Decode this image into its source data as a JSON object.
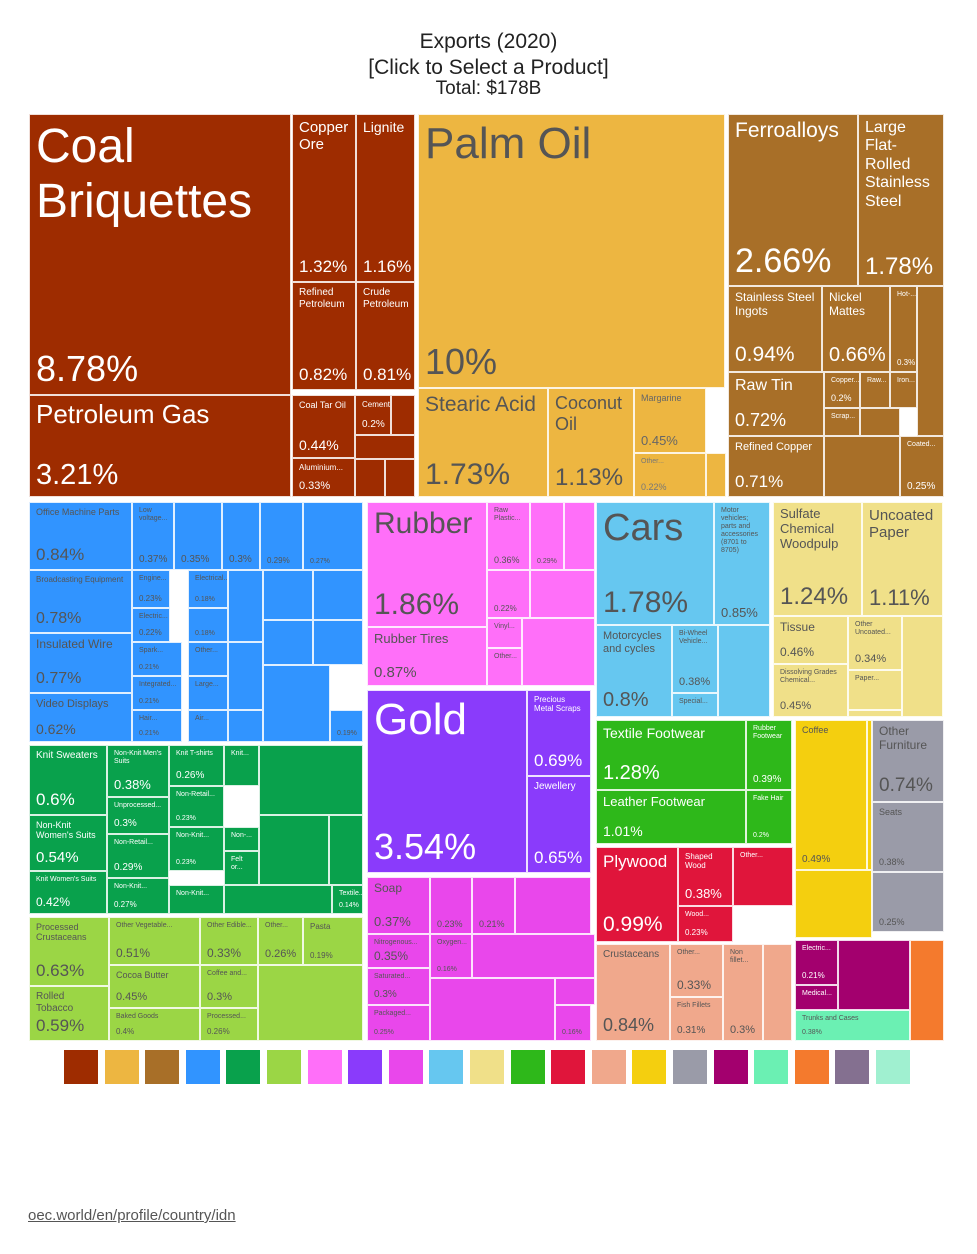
{
  "title": "Exports (2020)",
  "subtitle": "[Click to Select a Product]",
  "total": "Total: $178B",
  "source": "oec.world/en/profile/country/idn",
  "legend_colors": [
    "#9e2c00",
    "#edb641",
    "#a86f28",
    "#3194ff",
    "#09a14c",
    "#9bd645",
    "#ff6ff9",
    "#8a3bfb",
    "#e947eb",
    "#66c7f0",
    "#f0e089",
    "#2eb81a",
    "#e0153b",
    "#f0a88c",
    "#f4cf0f",
    "#9a9ba8",
    "#a3006e",
    "#6bf0b3",
    "#f47a2d",
    "#847090",
    "#a0f0d0"
  ],
  "chart_data": {
    "type": "treemap",
    "title": "Exports (2020)",
    "total": "$178B",
    "items": [
      {
        "name": "Coal Briquettes",
        "pct": "8.78%",
        "value": 8.78,
        "color": "#9e2c00"
      },
      {
        "name": "Copper Ore",
        "pct": "1.32%",
        "value": 1.32,
        "color": "#9e2c00"
      },
      {
        "name": "Lignite",
        "pct": "1.16%",
        "value": 1.16,
        "color": "#9e2c00"
      },
      {
        "name": "Refined Petroleum",
        "pct": "0.82%",
        "value": 0.82,
        "color": "#9e2c00"
      },
      {
        "name": "Crude Petroleum",
        "pct": "0.81%",
        "value": 0.81,
        "color": "#9e2c00"
      },
      {
        "name": "Petroleum Gas",
        "pct": "3.21%",
        "value": 3.21,
        "color": "#9e2c00"
      },
      {
        "name": "Coal Tar Oil",
        "pct": "0.44%",
        "value": 0.44,
        "color": "#9e2c00"
      },
      {
        "name": "Cement",
        "pct": "0.2%",
        "value": 0.2,
        "color": "#9e2c00"
      },
      {
        "name": "Aluminium...",
        "pct": "0.33%",
        "value": 0.33,
        "color": "#9e2c00"
      },
      {
        "name": "Palm Oil",
        "pct": "10%",
        "value": 10,
        "color": "#edb641"
      },
      {
        "name": "Stearic Acid",
        "pct": "1.73%",
        "value": 1.73,
        "color": "#edb641"
      },
      {
        "name": "Coconut Oil",
        "pct": "1.13%",
        "value": 1.13,
        "color": "#edb641"
      },
      {
        "name": "Margarine",
        "pct": "0.45%",
        "value": 0.45,
        "color": "#edb641"
      },
      {
        "name": "Other...",
        "pct": "0.22%",
        "value": 0.22,
        "color": "#edb641"
      },
      {
        "name": "Ferroalloys",
        "pct": "2.66%",
        "value": 2.66,
        "color": "#a86f28"
      },
      {
        "name": "Large Flat-Rolled Stainless Steel",
        "pct": "1.78%",
        "value": 1.78,
        "color": "#a86f28"
      },
      {
        "name": "Stainless Steel Ingots",
        "pct": "0.94%",
        "value": 0.94,
        "color": "#a86f28"
      },
      {
        "name": "Nickel Mattes",
        "pct": "0.66%",
        "value": 0.66,
        "color": "#a86f28"
      },
      {
        "name": "Hot-...",
        "pct": "0.3%",
        "value": 0.3,
        "color": "#a86f28"
      },
      {
        "name": "Raw Tin",
        "pct": "0.72%",
        "value": 0.72,
        "color": "#a86f28"
      },
      {
        "name": "Copper...",
        "pct": "0.2%",
        "value": 0.2,
        "color": "#a86f28"
      },
      {
        "name": "Raw...",
        "pct": "",
        "value": null,
        "color": "#a86f28"
      },
      {
        "name": "Iron...",
        "pct": "",
        "value": null,
        "color": "#a86f28"
      },
      {
        "name": "Scrap...",
        "pct": "",
        "value": null,
        "color": "#a86f28"
      },
      {
        "name": "Refined Copper",
        "pct": "0.71%",
        "value": 0.71,
        "color": "#a86f28"
      },
      {
        "name": "Coated...",
        "pct": "0.25%",
        "value": 0.25,
        "color": "#a86f28"
      },
      {
        "name": "Office Machine Parts",
        "pct": "0.84%",
        "value": 0.84,
        "color": "#3194ff"
      },
      {
        "name": "Low voltage...",
        "pct": "0.37%",
        "value": 0.37,
        "color": "#3194ff"
      },
      {
        "name": "",
        "pct": "0.35%",
        "value": 0.35,
        "color": "#3194ff"
      },
      {
        "name": "",
        "pct": "0.3%",
        "value": 0.3,
        "color": "#3194ff"
      },
      {
        "name": "",
        "pct": "0.29%",
        "value": 0.29,
        "color": "#3194ff"
      },
      {
        "name": "",
        "pct": "0.27%",
        "value": 0.27,
        "color": "#3194ff"
      },
      {
        "name": "Broadcasting Equipment",
        "pct": "0.78%",
        "value": 0.78,
        "color": "#3194ff"
      },
      {
        "name": "Engine...",
        "pct": "0.23%",
        "value": 0.23,
        "color": "#3194ff"
      },
      {
        "name": "Electrical...",
        "pct": "0.18%",
        "value": 0.18,
        "color": "#3194ff"
      },
      {
        "name": "Electric...",
        "pct": "0.22%",
        "value": 0.22,
        "color": "#3194ff"
      },
      {
        "name": "",
        "pct": "0.18%",
        "value": 0.18,
        "color": "#3194ff"
      },
      {
        "name": "Insulated Wire",
        "pct": "0.77%",
        "value": 0.77,
        "color": "#3194ff"
      },
      {
        "name": "Spark...",
        "pct": "0.21%",
        "value": 0.21,
        "color": "#3194ff"
      },
      {
        "name": "Other...",
        "pct": "",
        "value": null,
        "color": "#3194ff"
      },
      {
        "name": "Integrated...",
        "pct": "0.21%",
        "value": 0.21,
        "color": "#3194ff"
      },
      {
        "name": "Large...",
        "pct": "",
        "value": null,
        "color": "#3194ff"
      },
      {
        "name": "Video Displays",
        "pct": "0.62%",
        "value": 0.62,
        "color": "#3194ff"
      },
      {
        "name": "Hair...",
        "pct": "0.21%",
        "value": 0.21,
        "color": "#3194ff"
      },
      {
        "name": "Air...",
        "pct": "",
        "value": null,
        "color": "#3194ff"
      },
      {
        "name": "",
        "pct": "0.19%",
        "value": 0.19,
        "color": "#3194ff"
      },
      {
        "name": "Knit Sweaters",
        "pct": "0.6%",
        "value": 0.6,
        "color": "#09a14c"
      },
      {
        "name": "Non-Knit Men's Suits",
        "pct": "0.38%",
        "value": 0.38,
        "color": "#09a14c"
      },
      {
        "name": "Knit T-shirts",
        "pct": "0.26%",
        "value": 0.26,
        "color": "#09a14c"
      },
      {
        "name": "Knit...",
        "pct": "",
        "value": null,
        "color": "#09a14c"
      },
      {
        "name": "Unprocessed...",
        "pct": "0.3%",
        "value": 0.3,
        "color": "#09a14c"
      },
      {
        "name": "Non-Retail...",
        "pct": "0.23%",
        "value": 0.23,
        "color": "#09a14c"
      },
      {
        "name": "Non-Knit Women's Suits",
        "pct": "0.54%",
        "value": 0.54,
        "color": "#09a14c"
      },
      {
        "name": "Non-Retail...",
        "pct": "0.29%",
        "value": 0.29,
        "color": "#09a14c"
      },
      {
        "name": "Non-Knit...",
        "pct": "0.23%",
        "value": 0.23,
        "color": "#09a14c"
      },
      {
        "name": "Non-...",
        "pct": "",
        "value": null,
        "color": "#09a14c"
      },
      {
        "name": "Felt or...",
        "pct": "",
        "value": null,
        "color": "#09a14c"
      },
      {
        "name": "Knit Women's Suits",
        "pct": "0.42%",
        "value": 0.42,
        "color": "#09a14c"
      },
      {
        "name": "Non-Knit...",
        "pct": "0.27%",
        "value": 0.27,
        "color": "#09a14c"
      },
      {
        "name": "Non-Knit...",
        "pct": "",
        "value": null,
        "color": "#09a14c"
      },
      {
        "name": "Textile...",
        "pct": "0.14%",
        "value": 0.14,
        "color": "#09a14c"
      },
      {
        "name": "Processed Crustaceans",
        "pct": "0.63%",
        "value": 0.63,
        "color": "#9bd645"
      },
      {
        "name": "Other Vegetable...",
        "pct": "0.51%",
        "value": 0.51,
        "color": "#9bd645"
      },
      {
        "name": "Other Edible...",
        "pct": "0.33%",
        "value": 0.33,
        "color": "#9bd645"
      },
      {
        "name": "Other...",
        "pct": "0.26%",
        "value": 0.26,
        "color": "#9bd645"
      },
      {
        "name": "Pasta",
        "pct": "0.19%",
        "value": 0.19,
        "color": "#9bd645"
      },
      {
        "name": "Cocoa Butter",
        "pct": "0.45%",
        "value": 0.45,
        "color": "#9bd645"
      },
      {
        "name": "Coffee and...",
        "pct": "0.3%",
        "value": 0.3,
        "color": "#9bd645"
      },
      {
        "name": "Rolled Tobacco",
        "pct": "0.59%",
        "value": 0.59,
        "color": "#9bd645"
      },
      {
        "name": "Baked Goods",
        "pct": "0.4%",
        "value": 0.4,
        "color": "#9bd645"
      },
      {
        "name": "Processed...",
        "pct": "0.26%",
        "value": 0.26,
        "color": "#9bd645"
      },
      {
        "name": "Rubber",
        "pct": "1.86%",
        "value": 1.86,
        "color": "#ff6ff9"
      },
      {
        "name": "Raw Plastic...",
        "pct": "0.36%",
        "value": 0.36,
        "color": "#ff6ff9"
      },
      {
        "name": "",
        "pct": "0.29%",
        "value": 0.29,
        "color": "#ff6ff9"
      },
      {
        "name": "",
        "pct": "0.22%",
        "value": 0.22,
        "color": "#ff6ff9"
      },
      {
        "name": "Vinyl...",
        "pct": "",
        "value": null,
        "color": "#ff6ff9"
      },
      {
        "name": "Rubber Tires",
        "pct": "0.87%",
        "value": 0.87,
        "color": "#ff6ff9"
      },
      {
        "name": "Other...",
        "pct": "",
        "value": null,
        "color": "#ff6ff9"
      },
      {
        "name": "Gold",
        "pct": "3.54%",
        "value": 3.54,
        "color": "#8a3bfb"
      },
      {
        "name": "Precious Metal Scraps",
        "pct": "0.69%",
        "value": 0.69,
        "color": "#8a3bfb"
      },
      {
        "name": "Jewellery",
        "pct": "0.65%",
        "value": 0.65,
        "color": "#8a3bfb"
      },
      {
        "name": "Soap",
        "pct": "0.37%",
        "value": 0.37,
        "color": "#e947eb"
      },
      {
        "name": "",
        "pct": "0.23%",
        "value": 0.23,
        "color": "#e947eb"
      },
      {
        "name": "",
        "pct": "0.21%",
        "value": 0.21,
        "color": "#e947eb"
      },
      {
        "name": "Nitrogenous...",
        "pct": "0.35%",
        "value": 0.35,
        "color": "#e947eb"
      },
      {
        "name": "Oxygen...",
        "pct": "0.16%",
        "value": 0.16,
        "color": "#e947eb"
      },
      {
        "name": "Saturated...",
        "pct": "0.3%",
        "value": 0.3,
        "color": "#e947eb"
      },
      {
        "name": "Packaged...",
        "pct": "0.25%",
        "value": 0.25,
        "color": "#e947eb"
      },
      {
        "name": "",
        "pct": "0.16%",
        "value": 0.16,
        "color": "#e947eb"
      },
      {
        "name": "Cars",
        "pct": "1.78%",
        "value": 1.78,
        "color": "#66c7f0"
      },
      {
        "name": "Motor vehicles; parts and accessories (8701 to 8705)",
        "pct": "0.85%",
        "value": 0.85,
        "color": "#66c7f0"
      },
      {
        "name": "Motorcycles and cycles",
        "pct": "0.8%",
        "value": 0.8,
        "color": "#66c7f0"
      },
      {
        "name": "Bi-Wheel Vehicle...",
        "pct": "0.38%",
        "value": 0.38,
        "color": "#66c7f0"
      },
      {
        "name": "Special...",
        "pct": "",
        "value": null,
        "color": "#66c7f0"
      },
      {
        "name": "Sulfate Chemical Woodpulp",
        "pct": "1.24%",
        "value": 1.24,
        "color": "#f0e089"
      },
      {
        "name": "Uncoated Paper",
        "pct": "1.11%",
        "value": 1.11,
        "color": "#f0e089"
      },
      {
        "name": "Tissue",
        "pct": "0.46%",
        "value": 0.46,
        "color": "#f0e089"
      },
      {
        "name": "Other Uncoated...",
        "pct": "0.34%",
        "value": 0.34,
        "color": "#f0e089"
      },
      {
        "name": "Dissolving Grades Chemical...",
        "pct": "0.45%",
        "value": 0.45,
        "color": "#f0e089"
      },
      {
        "name": "Paper...",
        "pct": "",
        "value": null,
        "color": "#f0e089"
      },
      {
        "name": "Textile Footwear",
        "pct": "1.28%",
        "value": 1.28,
        "color": "#2eb81a"
      },
      {
        "name": "Rubber Footwear",
        "pct": "0.39%",
        "value": 0.39,
        "color": "#2eb81a"
      },
      {
        "name": "Leather Footwear",
        "pct": "1.01%",
        "value": 1.01,
        "color": "#2eb81a"
      },
      {
        "name": "Fake Hair",
        "pct": "0.2%",
        "value": 0.2,
        "color": "#2eb81a"
      },
      {
        "name": "Plywood",
        "pct": "0.99%",
        "value": 0.99,
        "color": "#e0153b"
      },
      {
        "name": "Shaped Wood",
        "pct": "0.38%",
        "value": 0.38,
        "color": "#e0153b"
      },
      {
        "name": "Other...",
        "pct": "",
        "value": null,
        "color": "#e0153b"
      },
      {
        "name": "Wood...",
        "pct": "0.23%",
        "value": 0.23,
        "color": "#e0153b"
      },
      {
        "name": "Crustaceans",
        "pct": "0.84%",
        "value": 0.84,
        "color": "#f0a88c"
      },
      {
        "name": "Other...",
        "pct": "0.33%",
        "value": 0.33,
        "color": "#f0a88c"
      },
      {
        "name": "Non fillet...",
        "pct": "0.3%",
        "value": 0.3,
        "color": "#f0a88c"
      },
      {
        "name": "Fish Fillets",
        "pct": "0.31%",
        "value": 0.31,
        "color": "#f0a88c"
      },
      {
        "name": "Coffee",
        "pct": "0.49%",
        "value": 0.49,
        "color": "#f4cf0f"
      },
      {
        "name": "Other Furniture",
        "pct": "0.74%",
        "value": 0.74,
        "color": "#9a9ba8"
      },
      {
        "name": "Seats",
        "pct": "0.38%",
        "value": 0.38,
        "color": "#9a9ba8"
      },
      {
        "name": "",
        "pct": "0.25%",
        "value": 0.25,
        "color": "#9a9ba8"
      },
      {
        "name": "Electric...",
        "pct": "0.21%",
        "value": 0.21,
        "color": "#a3006e"
      },
      {
        "name": "Medical...",
        "pct": "",
        "value": null,
        "color": "#a3006e"
      },
      {
        "name": "Trunks and Cases",
        "pct": "0.38%",
        "value": 0.38,
        "color": "#6bf0b3"
      }
    ]
  }
}
